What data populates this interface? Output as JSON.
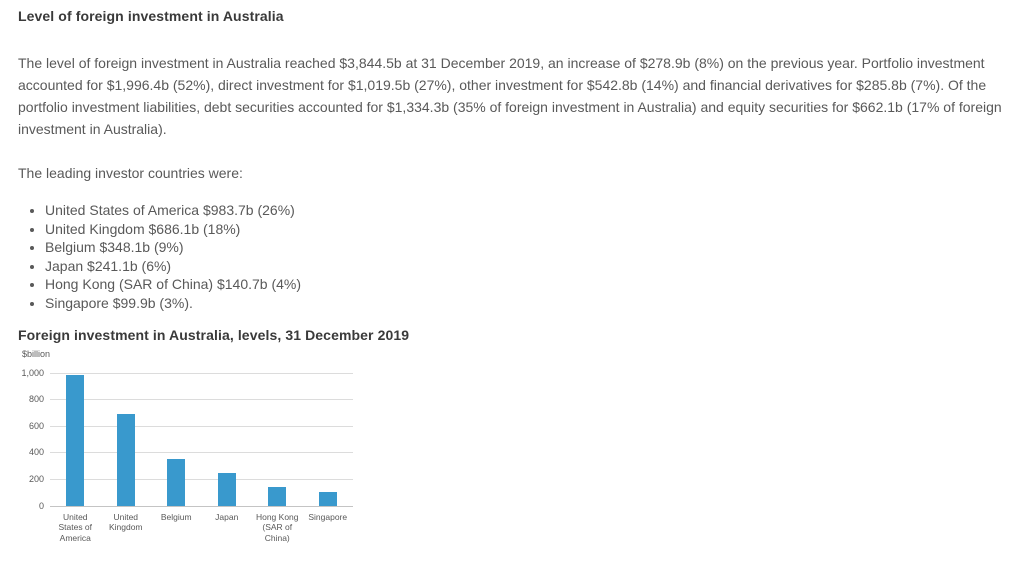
{
  "page": {
    "heading": "Level of foreign investment in Australia",
    "paragraph": "The level of foreign investment in Australia reached $3,844.5b at 31 December 2019, an increase of $278.9b (8%) on the previous year. Portfolio investment accounted for $1,996.4b (52%), direct investment for $1,019.5b (27%), other investment for $542.8b (14%) and financial derivatives for $285.8b (7%). Of the portfolio investment liabilities, debt securities accounted for $1,334.3b (35% of foreign investment in Australia) and equity securities for $662.1b (17% of foreign investment in Australia).",
    "list_intro": "The leading investor countries were:",
    "investors": [
      "United States of America $983.7b (26%)",
      "United Kingdom $686.1b (18%)",
      "Belgium $348.1b (9%)",
      "Japan $241.1b (6%)",
      "Hong Kong (SAR of China) $140.7b (4%)",
      "Singapore $99.9b (3%)."
    ]
  },
  "chart_data": {
    "type": "bar",
    "title": "Foreign investment in Australia, levels, 31 December 2019",
    "ylabel": "$billion",
    "xlabel": "",
    "categories": [
      "United States of America",
      "United Kingdom",
      "Belgium",
      "Japan",
      "Hong Kong (SAR of China)",
      "Singapore"
    ],
    "values": [
      983.7,
      686.1,
      348.1,
      241.1,
      140.7,
      99.9
    ],
    "ylim": [
      0,
      1000
    ],
    "ytick_values": [
      0,
      200,
      400,
      600,
      800,
      1000
    ],
    "ytick_labels": [
      "0",
      "200",
      "400",
      "600",
      "800",
      "1,000"
    ],
    "grid": true,
    "legend": "none",
    "bar_color": "#3999CD",
    "grid_color": "#DCDCDC",
    "axis_color": "#C4C4C4"
  }
}
